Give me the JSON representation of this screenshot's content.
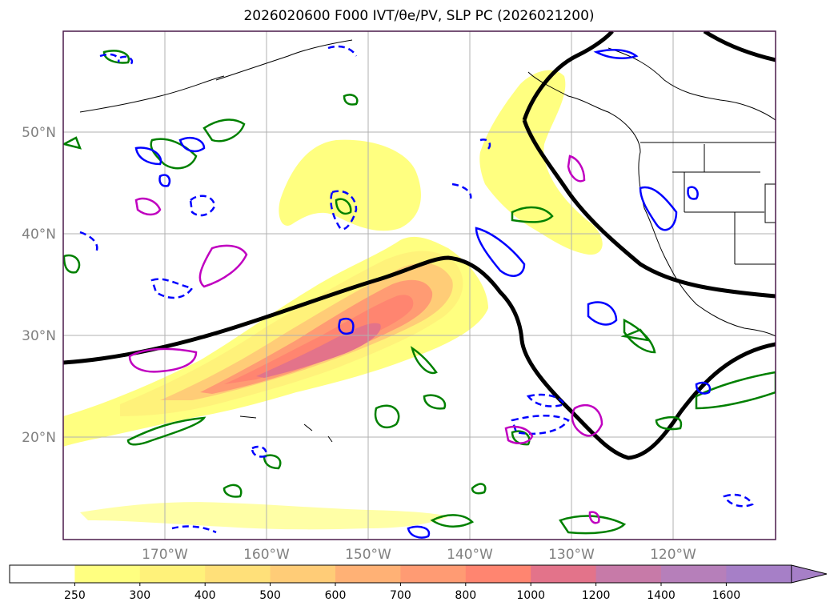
{
  "title": "2026020600 F000 IVT/θe/PV, SLP PC (2026021200)",
  "map": {
    "lat_labels": [
      "50°N",
      "40°N",
      "30°N",
      "20°N"
    ],
    "lon_labels": [
      "170°W",
      "160°W",
      "150°W",
      "140°W",
      "130°W",
      "120°W"
    ]
  },
  "colorbar": {
    "ticks": [
      "250",
      "300",
      "400",
      "500",
      "600",
      "700",
      "800",
      "1000",
      "1200",
      "1400",
      "1600"
    ],
    "colors": [
      "#ffffff",
      "#ffff80",
      "#fff27a",
      "#ffe079",
      "#ffcc77",
      "#ffb175",
      "#ff9b73",
      "#ff8570",
      "#e3738a",
      "#c77aa8",
      "#b67fba",
      "#a67fc7"
    ]
  },
  "legend_colors": {
    "slp_pc": "#000000",
    "theta_e": "#008000",
    "pv_positive": "#0000ff",
    "pv_highlight": "#c000c0"
  }
}
